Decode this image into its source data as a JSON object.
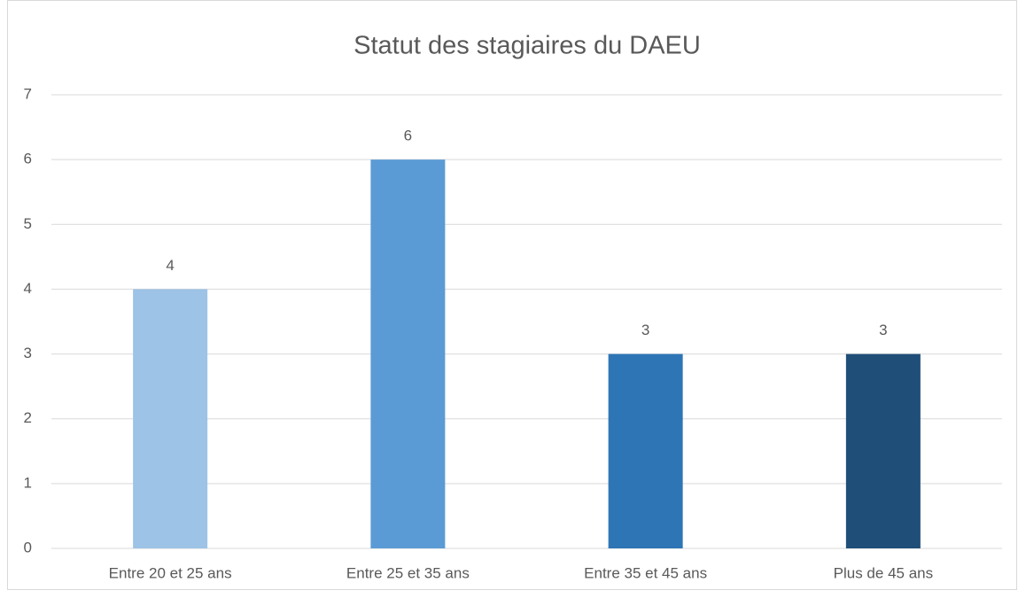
{
  "chart_data": {
    "type": "bar",
    "title": "Statut des stagiaires du DAEU",
    "categories": [
      "Entre 20 et 25 ans",
      "Entre 25 et 35 ans",
      "Entre 35 et 45 ans",
      "Plus de 45 ans"
    ],
    "values": [
      4,
      6,
      3,
      3
    ],
    "colors": [
      "#9dc3e6",
      "#5b9bd5",
      "#2e75b6",
      "#1f4e79"
    ],
    "ylim": [
      0,
      7
    ],
    "yticks": [
      0,
      1,
      2,
      3,
      4,
      5,
      6,
      7
    ],
    "grid": true
  }
}
